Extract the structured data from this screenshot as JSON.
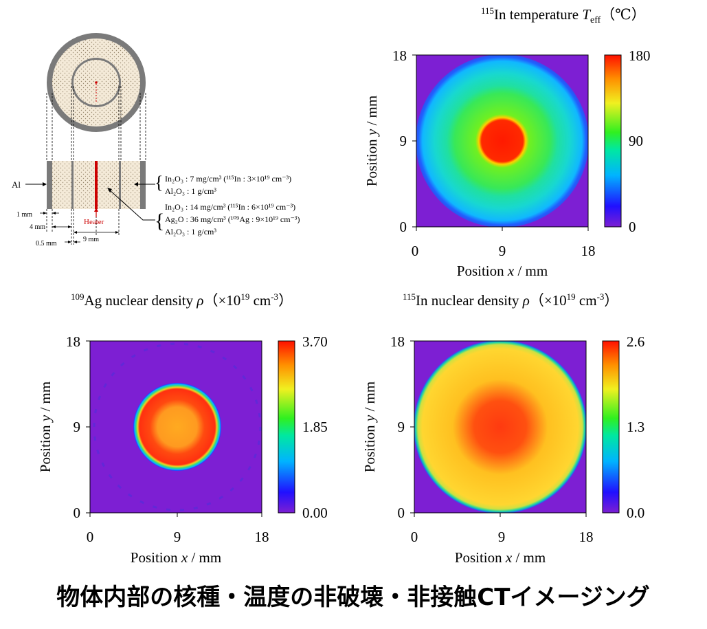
{
  "schematic": {
    "al_label": "Al",
    "layer1_line1": "In₂O₃ : 7 mg/cm³ (¹¹⁵In : 3×10¹⁹ cm⁻³)",
    "layer1_line2": "Al₂O₃ : 1 g/cm³",
    "layer2_line1": "In₂O₃ : 14 mg/cm³ (¹¹⁵In : 6×10¹⁹ cm⁻³)",
    "layer2_line2": "Ag₂O : 36 mg/cm³ (¹⁰⁹Ag : 9×10¹⁹ cm⁻³)",
    "layer2_line3": "Al₂O₃ : 1 g/cm³",
    "heater_label": "Heater",
    "dim_1mm": "1 mm",
    "dim_4mm": "4 mm",
    "dim_05mm": "0.5 mm",
    "dim_9mm": "9 mm",
    "colors": {
      "heater": "#cc0000",
      "shell": "#7a7a7a",
      "fill": "#f4ead8"
    }
  },
  "footer_title": "物体内部の核種・温度の非破壊・非接触CTイメージング",
  "chart_data": [
    {
      "type": "heatmap",
      "title": "¹¹⁵In temperature T_eff (℃)",
      "title_parts": {
        "prefix": "115",
        "main": "In temperature ",
        "symbol": "T",
        "sub": "eff",
        "unit": "（℃）"
      },
      "xlabel": "Position x / mm",
      "ylabel": "Position y / mm",
      "xlim": [
        0,
        18
      ],
      "ylim": [
        0,
        18
      ],
      "xticks": [
        "0",
        "9",
        "18"
      ],
      "yticks": [
        "0",
        "9",
        "18"
      ],
      "colorbar": {
        "min": 0,
        "max": 180,
        "ticks": [
          "0",
          "90",
          "180"
        ]
      },
      "regions": [
        {
          "name": "outside",
          "r_mm": [
            9.0,
            12.7
          ],
          "value": 0
        },
        {
          "name": "outer ring",
          "r_mm": [
            5.2,
            9.0
          ],
          "value": [
            55,
            70
          ]
        },
        {
          "name": "middle",
          "r_mm": [
            2.4,
            5.2
          ],
          "value": [
            95,
            110
          ]
        },
        {
          "name": "center",
          "r_mm": [
            0,
            2.4
          ],
          "value": 175
        }
      ]
    },
    {
      "type": "heatmap",
      "title": "¹⁰⁹Ag nuclear density ρ (×10¹⁹ cm⁻³)",
      "title_parts": {
        "prefix": "109",
        "main": "Ag nuclear density ",
        "symbol": "ρ",
        "unit": "（×10",
        "exp": "19",
        "unit2": " cm",
        "exp2": "-3",
        "close": "）"
      },
      "xlabel": "Position x / mm",
      "ylabel": "Position y / mm",
      "xlim": [
        0,
        18
      ],
      "ylim": [
        0,
        18
      ],
      "xticks": [
        "0",
        "9",
        "18"
      ],
      "yticks": [
        "0",
        "9",
        "18"
      ],
      "colorbar": {
        "min": 0,
        "max": 3.7,
        "ticks": [
          "0.00",
          "1.85",
          "3.70"
        ]
      },
      "regions": [
        {
          "name": "outside",
          "r_mm": [
            4.5,
            12.7
          ],
          "value": 0
        },
        {
          "name": "disk",
          "r_mm": [
            0,
            4.5
          ],
          "value": 3.4
        },
        {
          "name": "center",
          "r_mm": [
            0,
            2.5
          ],
          "value": 3.0
        }
      ]
    },
    {
      "type": "heatmap",
      "title": "¹¹⁵In nuclear density ρ (×10¹⁹ cm⁻³)",
      "title_parts": {
        "prefix": "115",
        "main": "In nuclear density ",
        "symbol": "ρ",
        "unit": "（×10",
        "exp": "19",
        "unit2": " cm",
        "exp2": "-3",
        "close": "）"
      },
      "xlabel": "Position x / mm",
      "ylabel": "Position y / mm",
      "xlim": [
        0,
        18
      ],
      "ylim": [
        0,
        18
      ],
      "xticks": [
        "0",
        "9",
        "18"
      ],
      "yticks": [
        "0",
        "9",
        "18"
      ],
      "colorbar": {
        "min": 0,
        "max": 2.6,
        "ticks": [
          "0.0",
          "1.3",
          "2.6"
        ]
      },
      "regions": [
        {
          "name": "outside",
          "r_mm": [
            9.0,
            12.7
          ],
          "value": 0
        },
        {
          "name": "outer disk",
          "r_mm": [
            4.5,
            9.0
          ],
          "value": 1.8
        },
        {
          "name": "center",
          "r_mm": [
            0,
            4.5
          ],
          "value": 2.35
        }
      ]
    }
  ]
}
